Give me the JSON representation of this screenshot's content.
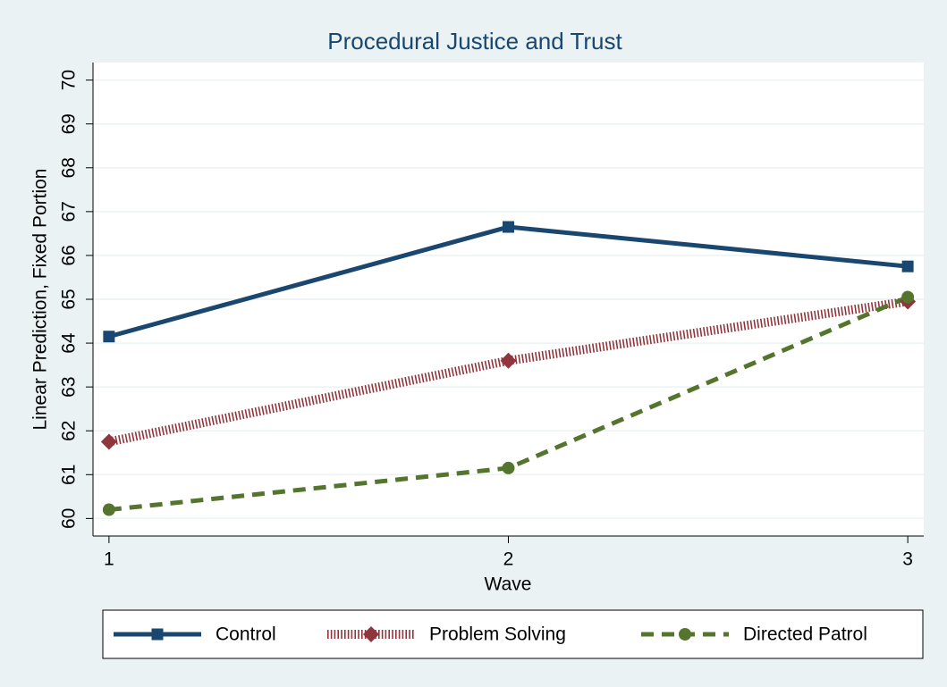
{
  "chart_data": {
    "type": "line",
    "title": "Procedural Justice and Trust",
    "x_label": "Wave",
    "y_label": "Linear Prediction, Fixed Portion",
    "x": [
      1,
      2,
      3
    ],
    "series": [
      {
        "name": "Control",
        "color": "#1a476f",
        "values": [
          64.15,
          66.65,
          65.75
        ],
        "marker": "square",
        "dash": "solid"
      },
      {
        "name": "Problem Solving",
        "color": "#90353b",
        "values": [
          61.75,
          63.6,
          64.95
        ],
        "marker": "diamond",
        "dash": "dotted"
      },
      {
        "name": "Directed Patrol",
        "color": "#55752f",
        "values": [
          60.2,
          61.15,
          65.05
        ],
        "marker": "circle",
        "dash": "dashed"
      }
    ],
    "xlim": [
      0.96,
      3.04
    ],
    "xticks": [
      1,
      2,
      3
    ],
    "ylim": [
      59.6,
      70.4
    ],
    "yticks": [
      60,
      61,
      62,
      63,
      64,
      65,
      66,
      67,
      68,
      69,
      70
    ],
    "grid": true,
    "legend": "bottom"
  }
}
